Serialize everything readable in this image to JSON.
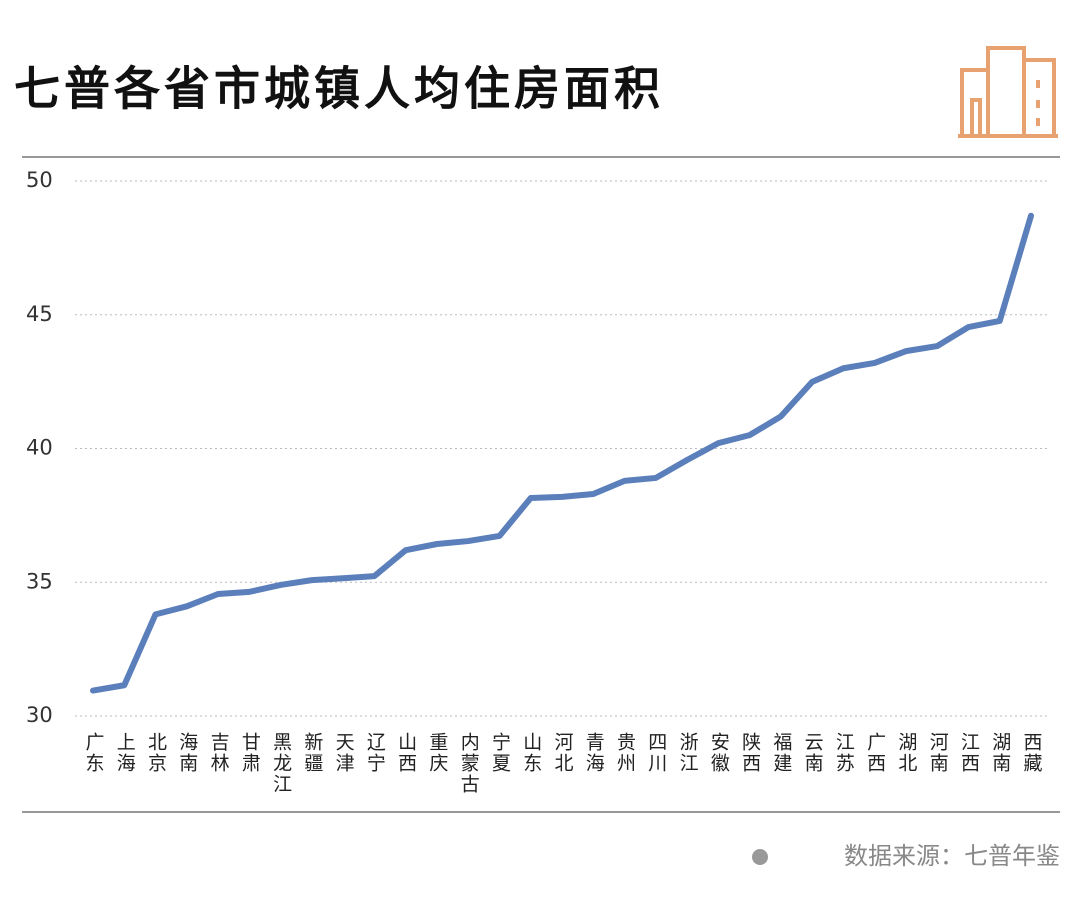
{
  "chart_data": {
    "type": "line",
    "title": "七普各省市城镇人均住房面积",
    "source": "数据来源：七普年鉴",
    "categories": [
      "广东",
      "上海",
      "北京",
      "海南",
      "吉林",
      "甘肃",
      "黑龙江",
      "新疆",
      "天津",
      "辽宁",
      "山西",
      "重庆",
      "内蒙古",
      "宁夏",
      "山东",
      "河北",
      "青海",
      "贵州",
      "四川",
      "浙江",
      "安徽",
      "陕西",
      "福建",
      "云南",
      "江苏",
      "广西",
      "湖北",
      "河南",
      "江西",
      "湖南",
      "西藏"
    ],
    "values": [
      30.95,
      31.15,
      33.8,
      34.1,
      34.56,
      34.64,
      34.9,
      35.08,
      35.15,
      35.23,
      36.2,
      36.43,
      36.54,
      36.73,
      38.15,
      38.19,
      38.3,
      38.79,
      38.9,
      39.57,
      40.2,
      40.5,
      41.2,
      42.49,
      43.0,
      43.2,
      43.64,
      43.83,
      44.54,
      44.77,
      48.7
    ],
    "color": "#5b7fbb",
    "ylim": [
      30,
      50
    ],
    "yticks": [
      30,
      35,
      40,
      45,
      50
    ],
    "grid": true
  }
}
